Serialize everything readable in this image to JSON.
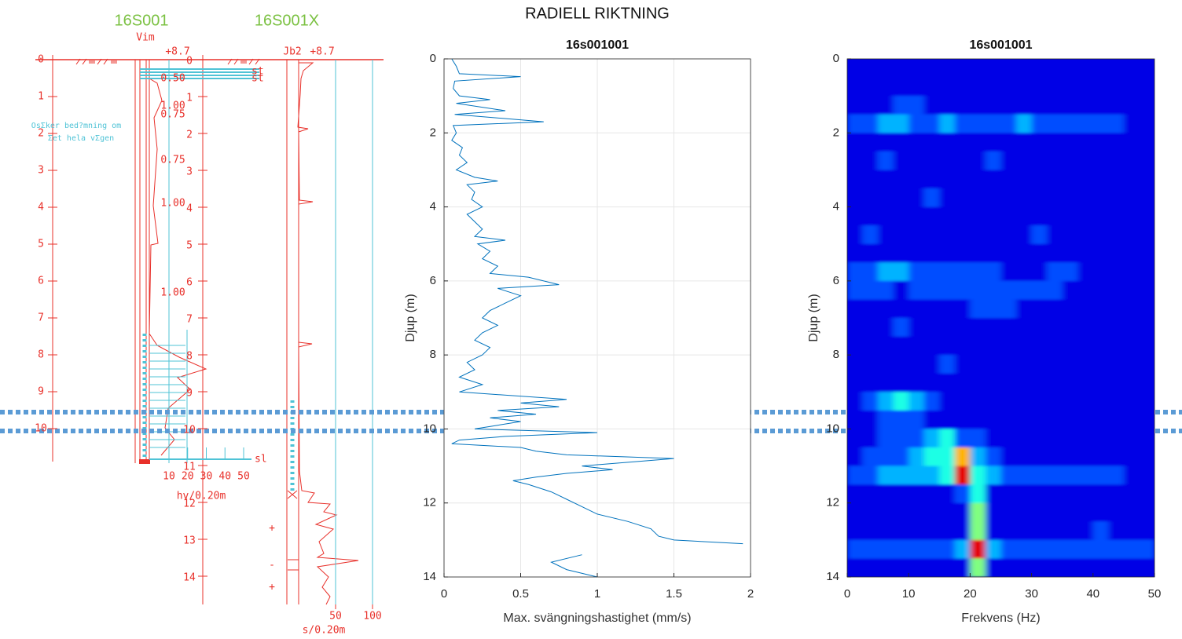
{
  "title": "RADIELL RIKTNING",
  "log": {
    "names": [
      "16S001",
      "16S001X"
    ],
    "method_left": "Vim",
    "level_left": "+8.7",
    "method_right": "Jb2",
    "level_right": "+8.7",
    "note": [
      "OsΣker bed?mning om",
      "Σet hela vΣgen"
    ],
    "depth_axis_a": [
      0,
      1,
      2,
      3,
      4,
      5,
      6,
      7,
      8,
      9,
      10
    ],
    "depth_axis_b": [
      0,
      1,
      2,
      3,
      4,
      5,
      6,
      7,
      8,
      9,
      10,
      11,
      12,
      13,
      14
    ],
    "pressure_labels": [
      "0.50",
      "1.00",
      "0.75",
      "0.75",
      "1.00",
      "1.00"
    ],
    "soil_codes": [
      "st",
      "st"
    ],
    "end_code": "sl",
    "hv_axis": [
      10,
      20,
      30,
      40,
      50
    ],
    "hv_label": "hv/0.20m",
    "s_axis": [
      50,
      100
    ],
    "s_label": "s/0.20m",
    "signs": [
      "+",
      "-",
      "+"
    ]
  },
  "chart_data": [
    {
      "type": "line",
      "title": "16s001001",
      "x_label": "Max. svängningshastighet (mm/s)",
      "y_label": "Djup (m)",
      "color": "#0072bd",
      "grid": true,
      "y_inverted": true,
      "xlim": [
        0,
        2
      ],
      "xticks": [
        0,
        0.5,
        1,
        1.5,
        2
      ],
      "ylim": [
        0,
        14
      ],
      "yticks": [
        0,
        2,
        4,
        6,
        8,
        10,
        12,
        14
      ],
      "depth": [
        0,
        0.2,
        0.4,
        0.48,
        0.6,
        0.8,
        1.0,
        1.1,
        1.2,
        1.4,
        1.5,
        1.7,
        1.8,
        2.0,
        2.2,
        2.4,
        2.6,
        2.8,
        3.0,
        3.2,
        3.3,
        3.4,
        3.6,
        3.8,
        4.0,
        4.2,
        4.4,
        4.6,
        4.8,
        4.9,
        5.0,
        5.2,
        5.4,
        5.6,
        5.8,
        5.9,
        6.1,
        6.2,
        6.4,
        6.6,
        6.8,
        7.0,
        7.2,
        7.4,
        7.6,
        7.8,
        8.0,
        8.2,
        8.4,
        8.6,
        8.8,
        9.0,
        9.1,
        9.2,
        9.3,
        9.4,
        9.5,
        9.6,
        9.7,
        9.8,
        9.9,
        10.0,
        10.1,
        10.2,
        10.3,
        10.4,
        10.5,
        10.6,
        10.7,
        10.8,
        10.9,
        11.0,
        11.1,
        11.2,
        11.3,
        11.4,
        11.5,
        11.7,
        11.9,
        12.1,
        12.3,
        12.5,
        12.7,
        12.9,
        13.0,
        13.1,
        13.3,
        13.4,
        13.6,
        13.8,
        14.0
      ],
      "values": [
        0.05,
        0.08,
        0.1,
        0.5,
        0.07,
        0.06,
        0.1,
        0.3,
        0.08,
        0.4,
        0.07,
        0.65,
        0.06,
        0.08,
        0.05,
        0.12,
        0.1,
        0.15,
        0.08,
        0.2,
        0.35,
        0.15,
        0.2,
        0.18,
        0.25,
        0.15,
        0.2,
        0.25,
        0.2,
        0.4,
        0.22,
        0.3,
        0.25,
        0.35,
        0.3,
        0.55,
        0.75,
        0.35,
        0.5,
        0.4,
        0.3,
        0.25,
        0.35,
        0.25,
        0.2,
        0.3,
        0.25,
        0.15,
        0.2,
        0.1,
        0.25,
        0.1,
        0.45,
        0.8,
        0.5,
        0.75,
        0.35,
        0.6,
        0.3,
        0.5,
        0.35,
        0.2,
        1.0,
        0.4,
        0.1,
        0.05,
        0.5,
        0.6,
        0.8,
        1.5,
        1.2,
        0.9,
        1.1,
        0.8,
        0.6,
        0.45,
        0.55,
        0.7,
        0.8,
        0.9,
        1.0,
        1.2,
        1.35,
        1.4,
        1.5,
        1.95,
        null,
        0.9,
        0.7,
        0.8,
        1.0
      ]
    },
    {
      "type": "heatmap",
      "title": "16s001001",
      "x_label": "Frekvens (Hz)",
      "y_label": "Djup (m)",
      "colormap": "jet",
      "zlim": [
        0,
        10
      ],
      "y_inverted": true,
      "xlim": [
        0,
        50
      ],
      "xticks": [
        0,
        10,
        20,
        30,
        40,
        50
      ],
      "ylim": [
        0,
        14
      ],
      "yticks": [
        0,
        2,
        4,
        6,
        8,
        10,
        12,
        14
      ],
      "xbins": [
        0,
        2.5,
        5,
        7.5,
        10,
        12.5,
        15,
        17.5,
        20,
        22.5,
        25,
        27.5,
        30,
        32.5,
        35,
        37.5,
        40,
        42.5,
        45,
        47.5,
        50
      ],
      "ybins": [
        0,
        0.5,
        1,
        1.5,
        2,
        2.5,
        3,
        3.5,
        4,
        4.5,
        5,
        5.5,
        6,
        6.5,
        7,
        7.5,
        8,
        8.5,
        9,
        9.5,
        10,
        10.5,
        11,
        11.5,
        12,
        12.5,
        13,
        13.5,
        14
      ],
      "z": [
        [
          1,
          1,
          1,
          1,
          1,
          1,
          1,
          1,
          1,
          1,
          1,
          1,
          1,
          1,
          1,
          1,
          1,
          1,
          1,
          1
        ],
        [
          1,
          1,
          1,
          1,
          1,
          1,
          1,
          1,
          1,
          1,
          1,
          1,
          1,
          1,
          1,
          1,
          1,
          1,
          1,
          1
        ],
        [
          1,
          1,
          1,
          2,
          2,
          1,
          1,
          1,
          1,
          1,
          1,
          1,
          1,
          1,
          1,
          1,
          1,
          1,
          1,
          1
        ],
        [
          2,
          2,
          3,
          3,
          2,
          2,
          3,
          2,
          2,
          2,
          2,
          3,
          2,
          2,
          2,
          2,
          2,
          2,
          1,
          1
        ],
        [
          1,
          1,
          1,
          1,
          1,
          1,
          1,
          1,
          1,
          1,
          1,
          1,
          1,
          1,
          1,
          1,
          1,
          1,
          1,
          1
        ],
        [
          1,
          1,
          2,
          1,
          1,
          1,
          1,
          1,
          1,
          2,
          1,
          1,
          1,
          1,
          1,
          1,
          1,
          1,
          1,
          1
        ],
        [
          1,
          1,
          1,
          1,
          1,
          1,
          1,
          1,
          1,
          1,
          1,
          1,
          1,
          1,
          1,
          1,
          1,
          1,
          1,
          1
        ],
        [
          1,
          1,
          1,
          1,
          1,
          2,
          1,
          1,
          1,
          1,
          1,
          1,
          1,
          1,
          1,
          1,
          1,
          1,
          1,
          1
        ],
        [
          1,
          1,
          1,
          1,
          1,
          1,
          1,
          1,
          1,
          1,
          1,
          1,
          1,
          1,
          1,
          1,
          1,
          1,
          1,
          1
        ],
        [
          1,
          2,
          1,
          1,
          1,
          1,
          1,
          1,
          1,
          1,
          1,
          1,
          2,
          1,
          1,
          1,
          1,
          1,
          1,
          1
        ],
        [
          1,
          1,
          1,
          1,
          1,
          1,
          1,
          1,
          1,
          1,
          1,
          1,
          1,
          1,
          1,
          1,
          1,
          1,
          1,
          1
        ],
        [
          2,
          2,
          3,
          3,
          2,
          2,
          2,
          2,
          2,
          2,
          1,
          1,
          1,
          2,
          2,
          1,
          1,
          1,
          1,
          1
        ],
        [
          2,
          2,
          2,
          1,
          2,
          2,
          2,
          2,
          2,
          2,
          2,
          2,
          2,
          2,
          1,
          1,
          1,
          1,
          1,
          1
        ],
        [
          1,
          1,
          1,
          1,
          1,
          1,
          1,
          1,
          2,
          2,
          2,
          1,
          1,
          1,
          1,
          1,
          1,
          1,
          1,
          1
        ],
        [
          1,
          1,
          1,
          2,
          1,
          1,
          1,
          1,
          1,
          1,
          1,
          1,
          1,
          1,
          1,
          1,
          1,
          1,
          1,
          1
        ],
        [
          1,
          1,
          1,
          1,
          1,
          1,
          1,
          1,
          1,
          1,
          1,
          1,
          1,
          1,
          1,
          1,
          1,
          1,
          1,
          1
        ],
        [
          1,
          1,
          1,
          1,
          1,
          1,
          2,
          1,
          1,
          1,
          1,
          1,
          1,
          1,
          1,
          1,
          1,
          1,
          1,
          1
        ],
        [
          1,
          1,
          1,
          1,
          1,
          1,
          1,
          1,
          1,
          1,
          1,
          1,
          1,
          1,
          1,
          1,
          1,
          1,
          1,
          1
        ],
        [
          1,
          2,
          3,
          4,
          3,
          2,
          1,
          1,
          1,
          1,
          1,
          1,
          1,
          1,
          1,
          1,
          1,
          1,
          1,
          1
        ],
        [
          1,
          1,
          2,
          2,
          2,
          1,
          1,
          1,
          1,
          1,
          1,
          1,
          1,
          1,
          1,
          1,
          1,
          1,
          1,
          1
        ],
        [
          1,
          1,
          2,
          2,
          2,
          3,
          4,
          2,
          2,
          1,
          1,
          1,
          1,
          1,
          1,
          1,
          1,
          1,
          1,
          1
        ],
        [
          1,
          2,
          2,
          2,
          3,
          4,
          4,
          7,
          3,
          2,
          1,
          1,
          1,
          1,
          1,
          1,
          1,
          1,
          1,
          1
        ],
        [
          2,
          2,
          3,
          3,
          3,
          3,
          4,
          9,
          4,
          3,
          2,
          2,
          2,
          2,
          2,
          2,
          2,
          2,
          1,
          1
        ],
        [
          1,
          1,
          1,
          1,
          1,
          1,
          1,
          2,
          4,
          1,
          1,
          1,
          1,
          1,
          1,
          1,
          1,
          1,
          1,
          1
        ],
        [
          1,
          1,
          1,
          1,
          1,
          1,
          1,
          1,
          5,
          1,
          1,
          1,
          1,
          1,
          1,
          1,
          1,
          1,
          1,
          1
        ],
        [
          1,
          1,
          1,
          1,
          1,
          1,
          1,
          1,
          5,
          1,
          1,
          1,
          1,
          1,
          1,
          1,
          2,
          1,
          1,
          1
        ],
        [
          2,
          2,
          2,
          2,
          2,
          2,
          2,
          3,
          9,
          3,
          2,
          2,
          2,
          2,
          2,
          2,
          2,
          2,
          2,
          2
        ],
        [
          1,
          1,
          1,
          1,
          1,
          1,
          1,
          1,
          5,
          1,
          1,
          1,
          1,
          1,
          1,
          1,
          1,
          1,
          1,
          1
        ]
      ]
    }
  ]
}
